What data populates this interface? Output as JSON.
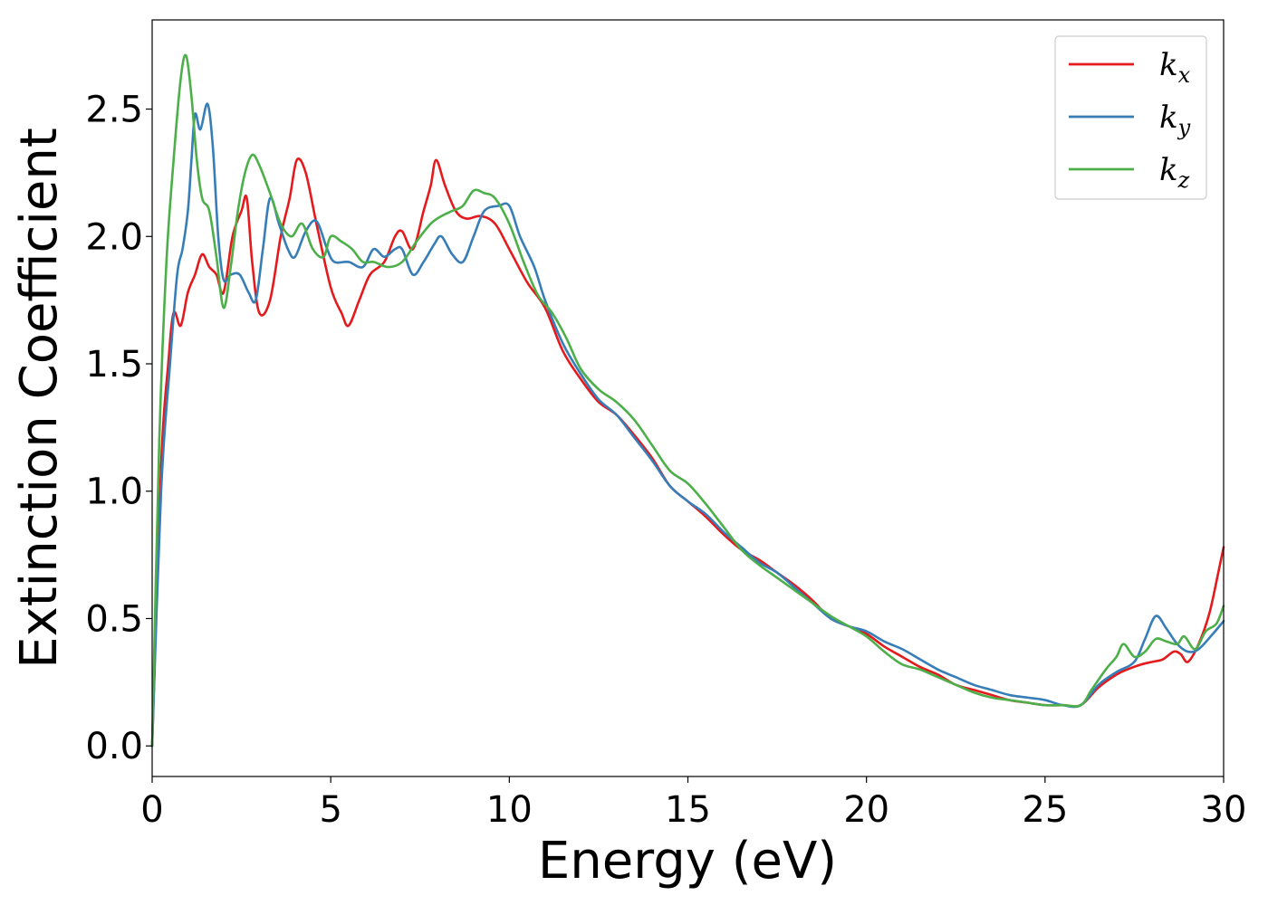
{
  "chart_data": {
    "type": "line",
    "title": "",
    "xlabel": "Energy (eV)",
    "ylabel": "Extinction Coefficient",
    "xlim": [
      0,
      30
    ],
    "ylim": [
      -0.12,
      2.85
    ],
    "xticks": [
      0,
      5,
      10,
      15,
      20,
      25,
      30
    ],
    "xtick_labels": [
      "0",
      "5",
      "10",
      "15",
      "20",
      "25",
      "30"
    ],
    "yticks": [
      0.0,
      0.5,
      1.0,
      1.5,
      2.0,
      2.5
    ],
    "ytick_labels": [
      "0.0",
      "0.5",
      "1.0",
      "1.5",
      "2.0",
      "2.5"
    ],
    "grid": false,
    "legend_position": "top-right",
    "series": [
      {
        "name": "k_x",
        "label_main": "k",
        "label_sub": "x",
        "color": "#e41a1c",
        "points": [
          [
            0,
            0.0
          ],
          [
            0.25,
            1.1
          ],
          [
            0.45,
            1.5
          ],
          [
            0.6,
            1.7
          ],
          [
            0.8,
            1.65
          ],
          [
            1.0,
            1.78
          ],
          [
            1.2,
            1.85
          ],
          [
            1.4,
            1.93
          ],
          [
            1.6,
            1.88
          ],
          [
            1.8,
            1.85
          ],
          [
            2.0,
            1.78
          ],
          [
            2.25,
            2.0
          ],
          [
            2.5,
            2.1
          ],
          [
            2.65,
            2.15
          ],
          [
            2.8,
            1.9
          ],
          [
            3.0,
            1.7
          ],
          [
            3.3,
            1.75
          ],
          [
            3.6,
            2.0
          ],
          [
            3.85,
            2.15
          ],
          [
            4.05,
            2.3
          ],
          [
            4.3,
            2.25
          ],
          [
            4.6,
            2.05
          ],
          [
            5.0,
            1.8
          ],
          [
            5.3,
            1.7
          ],
          [
            5.5,
            1.65
          ],
          [
            5.8,
            1.75
          ],
          [
            6.1,
            1.85
          ],
          [
            6.5,
            1.9
          ],
          [
            6.8,
            2.0
          ],
          [
            7.0,
            2.02
          ],
          [
            7.3,
            1.95
          ],
          [
            7.6,
            2.1
          ],
          [
            7.8,
            2.2
          ],
          [
            7.95,
            2.3
          ],
          [
            8.2,
            2.2
          ],
          [
            8.5,
            2.1
          ],
          [
            8.8,
            2.07
          ],
          [
            9.2,
            2.08
          ],
          [
            9.6,
            2.05
          ],
          [
            10.0,
            1.95
          ],
          [
            10.5,
            1.82
          ],
          [
            11.0,
            1.72
          ],
          [
            11.5,
            1.55
          ],
          [
            12.0,
            1.44
          ],
          [
            12.5,
            1.35
          ],
          [
            13.0,
            1.3
          ],
          [
            13.5,
            1.22
          ],
          [
            14.0,
            1.13
          ],
          [
            14.5,
            1.02
          ],
          [
            15.0,
            0.96
          ],
          [
            15.5,
            0.9
          ],
          [
            16.0,
            0.83
          ],
          [
            16.5,
            0.77
          ],
          [
            17.0,
            0.73
          ],
          [
            17.5,
            0.68
          ],
          [
            18.0,
            0.63
          ],
          [
            18.5,
            0.57
          ],
          [
            19.0,
            0.5
          ],
          [
            19.5,
            0.47
          ],
          [
            20.0,
            0.44
          ],
          [
            20.5,
            0.39
          ],
          [
            21.0,
            0.35
          ],
          [
            21.5,
            0.31
          ],
          [
            22.0,
            0.28
          ],
          [
            22.5,
            0.24
          ],
          [
            23.0,
            0.22
          ],
          [
            23.5,
            0.2
          ],
          [
            24.0,
            0.18
          ],
          [
            24.5,
            0.17
          ],
          [
            25.0,
            0.16
          ],
          [
            25.5,
            0.16
          ],
          [
            26.0,
            0.16
          ],
          [
            26.5,
            0.23
          ],
          [
            27.0,
            0.28
          ],
          [
            27.3,
            0.3
          ],
          [
            27.7,
            0.32
          ],
          [
            28.0,
            0.33
          ],
          [
            28.3,
            0.34
          ],
          [
            28.6,
            0.37
          ],
          [
            28.8,
            0.36
          ],
          [
            29.0,
            0.33
          ],
          [
            29.3,
            0.4
          ],
          [
            29.6,
            0.52
          ],
          [
            29.85,
            0.68
          ],
          [
            30.0,
            0.78
          ]
        ]
      },
      {
        "name": "k_y",
        "label_main": "k",
        "label_sub": "y",
        "color": "#377eb8",
        "points": [
          [
            0,
            0.0
          ],
          [
            0.25,
            1.0
          ],
          [
            0.5,
            1.5
          ],
          [
            0.7,
            1.85
          ],
          [
            0.85,
            1.95
          ],
          [
            1.0,
            2.1
          ],
          [
            1.1,
            2.3
          ],
          [
            1.2,
            2.48
          ],
          [
            1.35,
            2.42
          ],
          [
            1.55,
            2.52
          ],
          [
            1.7,
            2.35
          ],
          [
            1.85,
            2.0
          ],
          [
            2.0,
            1.83
          ],
          [
            2.2,
            1.85
          ],
          [
            2.45,
            1.85
          ],
          [
            2.7,
            1.78
          ],
          [
            2.9,
            1.75
          ],
          [
            3.1,
            1.95
          ],
          [
            3.3,
            2.15
          ],
          [
            3.55,
            2.05
          ],
          [
            3.8,
            1.95
          ],
          [
            4.0,
            1.92
          ],
          [
            4.3,
            2.02
          ],
          [
            4.6,
            2.06
          ],
          [
            4.9,
            1.95
          ],
          [
            5.1,
            1.9
          ],
          [
            5.5,
            1.9
          ],
          [
            5.9,
            1.88
          ],
          [
            6.2,
            1.95
          ],
          [
            6.5,
            1.92
          ],
          [
            6.8,
            1.95
          ],
          [
            7.0,
            1.95
          ],
          [
            7.3,
            1.85
          ],
          [
            7.6,
            1.9
          ],
          [
            7.9,
            1.97
          ],
          [
            8.1,
            2.0
          ],
          [
            8.4,
            1.93
          ],
          [
            8.7,
            1.9
          ],
          [
            9.0,
            2.0
          ],
          [
            9.3,
            2.1
          ],
          [
            9.7,
            2.12
          ],
          [
            10.0,
            2.12
          ],
          [
            10.3,
            2.0
          ],
          [
            10.7,
            1.88
          ],
          [
            11.0,
            1.75
          ],
          [
            11.5,
            1.58
          ],
          [
            12.0,
            1.46
          ],
          [
            12.5,
            1.36
          ],
          [
            13.0,
            1.3
          ],
          [
            13.5,
            1.21
          ],
          [
            14.0,
            1.12
          ],
          [
            14.5,
            1.02
          ],
          [
            15.0,
            0.96
          ],
          [
            15.5,
            0.91
          ],
          [
            16.0,
            0.84
          ],
          [
            16.5,
            0.78
          ],
          [
            17.0,
            0.72
          ],
          [
            17.5,
            0.68
          ],
          [
            18.0,
            0.62
          ],
          [
            18.5,
            0.56
          ],
          [
            19.0,
            0.5
          ],
          [
            19.5,
            0.47
          ],
          [
            20.0,
            0.45
          ],
          [
            20.5,
            0.41
          ],
          [
            21.0,
            0.38
          ],
          [
            21.5,
            0.34
          ],
          [
            22.0,
            0.3
          ],
          [
            22.5,
            0.27
          ],
          [
            23.0,
            0.24
          ],
          [
            23.5,
            0.22
          ],
          [
            24.0,
            0.2
          ],
          [
            24.5,
            0.19
          ],
          [
            25.0,
            0.18
          ],
          [
            25.5,
            0.16
          ],
          [
            26.0,
            0.16
          ],
          [
            26.5,
            0.24
          ],
          [
            27.0,
            0.29
          ],
          [
            27.5,
            0.33
          ],
          [
            27.8,
            0.42
          ],
          [
            28.1,
            0.51
          ],
          [
            28.4,
            0.46
          ],
          [
            28.7,
            0.4
          ],
          [
            29.0,
            0.37
          ],
          [
            29.3,
            0.38
          ],
          [
            29.7,
            0.44
          ],
          [
            30.0,
            0.49
          ]
        ]
      },
      {
        "name": "k_z",
        "label_main": "k",
        "label_sub": "z",
        "color": "#4daf4a",
        "points": [
          [
            0,
            0.0
          ],
          [
            0.2,
            1.2
          ],
          [
            0.4,
            1.9
          ],
          [
            0.6,
            2.3
          ],
          [
            0.8,
            2.62
          ],
          [
            0.95,
            2.71
          ],
          [
            1.1,
            2.55
          ],
          [
            1.25,
            2.3
          ],
          [
            1.4,
            2.15
          ],
          [
            1.6,
            2.1
          ],
          [
            1.8,
            1.92
          ],
          [
            2.0,
            1.72
          ],
          [
            2.2,
            1.88
          ],
          [
            2.4,
            2.1
          ],
          [
            2.6,
            2.25
          ],
          [
            2.8,
            2.32
          ],
          [
            3.0,
            2.28
          ],
          [
            3.3,
            2.17
          ],
          [
            3.6,
            2.05
          ],
          [
            3.9,
            2.0
          ],
          [
            4.2,
            2.05
          ],
          [
            4.5,
            1.95
          ],
          [
            4.8,
            1.92
          ],
          [
            5.0,
            2.0
          ],
          [
            5.3,
            1.98
          ],
          [
            5.6,
            1.95
          ],
          [
            5.9,
            1.9
          ],
          [
            6.2,
            1.9
          ],
          [
            6.6,
            1.88
          ],
          [
            7.0,
            1.9
          ],
          [
            7.4,
            1.98
          ],
          [
            7.8,
            2.05
          ],
          [
            8.1,
            2.08
          ],
          [
            8.4,
            2.1
          ],
          [
            8.7,
            2.12
          ],
          [
            9.0,
            2.18
          ],
          [
            9.3,
            2.17
          ],
          [
            9.6,
            2.15
          ],
          [
            10.0,
            2.05
          ],
          [
            10.4,
            1.9
          ],
          [
            10.8,
            1.77
          ],
          [
            11.2,
            1.7
          ],
          [
            11.6,
            1.6
          ],
          [
            12.0,
            1.48
          ],
          [
            12.5,
            1.4
          ],
          [
            13.0,
            1.35
          ],
          [
            13.5,
            1.28
          ],
          [
            14.0,
            1.18
          ],
          [
            14.5,
            1.08
          ],
          [
            15.0,
            1.03
          ],
          [
            15.5,
            0.95
          ],
          [
            16.0,
            0.86
          ],
          [
            16.5,
            0.77
          ],
          [
            17.0,
            0.71
          ],
          [
            17.5,
            0.66
          ],
          [
            18.0,
            0.61
          ],
          [
            18.5,
            0.56
          ],
          [
            19.0,
            0.51
          ],
          [
            19.5,
            0.47
          ],
          [
            20.0,
            0.43
          ],
          [
            20.5,
            0.37
          ],
          [
            21.0,
            0.32
          ],
          [
            21.5,
            0.3
          ],
          [
            22.0,
            0.27
          ],
          [
            22.5,
            0.24
          ],
          [
            23.0,
            0.21
          ],
          [
            23.5,
            0.19
          ],
          [
            24.0,
            0.18
          ],
          [
            24.5,
            0.17
          ],
          [
            25.0,
            0.16
          ],
          [
            25.5,
            0.16
          ],
          [
            26.0,
            0.16
          ],
          [
            26.3,
            0.22
          ],
          [
            26.7,
            0.3
          ],
          [
            27.0,
            0.35
          ],
          [
            27.2,
            0.4
          ],
          [
            27.5,
            0.35
          ],
          [
            27.8,
            0.37
          ],
          [
            28.1,
            0.42
          ],
          [
            28.4,
            0.41
          ],
          [
            28.7,
            0.4
          ],
          [
            28.9,
            0.43
          ],
          [
            29.2,
            0.38
          ],
          [
            29.5,
            0.45
          ],
          [
            29.8,
            0.48
          ],
          [
            30.0,
            0.55
          ]
        ]
      }
    ]
  }
}
